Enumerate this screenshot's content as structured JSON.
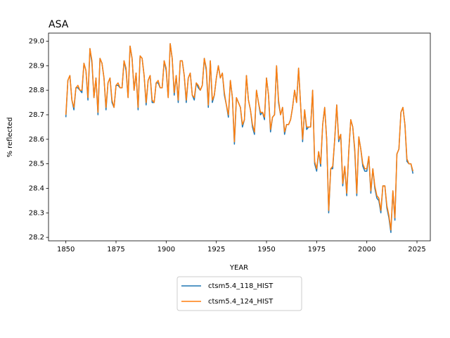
{
  "chart_data": {
    "type": "line",
    "title": "ASA",
    "y_label": "% reflected",
    "x_label": "YEAR",
    "x": [
      1850,
      1851,
      1852,
      1853,
      1854,
      1855,
      1856,
      1857,
      1858,
      1859,
      1860,
      1861,
      1862,
      1863,
      1864,
      1865,
      1866,
      1867,
      1868,
      1869,
      1870,
      1871,
      1872,
      1873,
      1874,
      1875,
      1876,
      1877,
      1878,
      1879,
      1880,
      1881,
      1882,
      1883,
      1884,
      1885,
      1886,
      1887,
      1888,
      1889,
      1890,
      1891,
      1892,
      1893,
      1894,
      1895,
      1896,
      1897,
      1898,
      1899,
      1900,
      1901,
      1902,
      1903,
      1904,
      1905,
      1906,
      1907,
      1908,
      1909,
      1910,
      1911,
      1912,
      1913,
      1914,
      1915,
      1916,
      1917,
      1918,
      1919,
      1920,
      1921,
      1922,
      1923,
      1924,
      1925,
      1926,
      1927,
      1928,
      1929,
      1930,
      1931,
      1932,
      1933,
      1934,
      1935,
      1936,
      1937,
      1938,
      1939,
      1940,
      1941,
      1942,
      1943,
      1944,
      1945,
      1946,
      1947,
      1948,
      1949,
      1950,
      1951,
      1952,
      1953,
      1954,
      1955,
      1956,
      1957,
      1958,
      1959,
      1960,
      1961,
      1962,
      1963,
      1964,
      1965,
      1966,
      1967,
      1968,
      1969,
      1970,
      1971,
      1972,
      1973,
      1974,
      1975,
      1976,
      1977,
      1978,
      1979,
      1980,
      1981,
      1982,
      1983,
      1984,
      1985,
      1986,
      1987,
      1988,
      1989,
      1990,
      1991,
      1992,
      1993,
      1994,
      1995,
      1996,
      1997,
      1998,
      1999,
      2000,
      2001,
      2002,
      2003,
      2004,
      2005,
      2006,
      2007,
      2008,
      2009,
      2010,
      2011,
      2012,
      2013,
      2014,
      2015,
      2016,
      2017,
      2018,
      2019,
      2020,
      2021,
      2022,
      2023
    ],
    "series": [
      {
        "name": "ctsm5.4_118_HIST",
        "color": "#1f77b4",
        "values": [
          28.69,
          28.84,
          28.86,
          28.76,
          28.72,
          28.81,
          28.81,
          28.8,
          28.79,
          28.91,
          28.88,
          28.76,
          28.97,
          28.91,
          28.77,
          28.85,
          28.7,
          28.93,
          28.91,
          28.85,
          28.72,
          28.83,
          28.85,
          28.75,
          28.73,
          28.82,
          28.82,
          28.81,
          28.81,
          28.92,
          28.88,
          28.77,
          28.98,
          28.93,
          28.8,
          28.87,
          28.72,
          28.94,
          28.93,
          28.86,
          28.74,
          28.84,
          28.86,
          28.75,
          28.75,
          28.83,
          28.83,
          28.81,
          28.81,
          28.92,
          28.88,
          28.77,
          28.99,
          28.93,
          28.78,
          28.86,
          28.75,
          28.92,
          28.92,
          28.86,
          28.75,
          28.85,
          28.87,
          28.78,
          28.76,
          28.83,
          28.81,
          28.8,
          28.82,
          28.93,
          28.88,
          28.73,
          28.92,
          28.75,
          28.78,
          28.85,
          28.9,
          28.85,
          28.87,
          28.78,
          28.74,
          28.69,
          28.84,
          28.77,
          28.58,
          28.77,
          28.75,
          28.73,
          28.65,
          28.68,
          28.86,
          28.76,
          28.72,
          28.65,
          28.62,
          28.8,
          28.75,
          28.7,
          28.71,
          28.68,
          28.85,
          28.78,
          28.63,
          28.69,
          28.7,
          28.9,
          28.75,
          28.7,
          28.73,
          28.62,
          28.66,
          28.66,
          28.68,
          28.73,
          28.8,
          28.75,
          28.89,
          28.74,
          28.59,
          28.72,
          28.64,
          28.65,
          28.65,
          28.8,
          28.5,
          28.47,
          28.55,
          28.49,
          28.66,
          28.73,
          28.6,
          28.3,
          28.48,
          28.48,
          28.6,
          28.74,
          28.59,
          28.62,
          28.41,
          28.49,
          28.37,
          28.55,
          28.68,
          28.65,
          28.55,
          28.37,
          28.61,
          28.56,
          28.49,
          28.47,
          28.47,
          28.53,
          28.38,
          28.48,
          28.4,
          28.36,
          28.35,
          28.3,
          28.41,
          28.41,
          28.32,
          28.28,
          28.22,
          28.39,
          28.27,
          28.54,
          28.56,
          28.71,
          28.73,
          28.66,
          28.51,
          28.5,
          28.5,
          28.46
        ]
      },
      {
        "name": "ctsm5.4_124_HIST",
        "color": "#ff7f0e",
        "values": [
          28.7,
          28.84,
          28.86,
          28.76,
          28.73,
          28.81,
          28.82,
          28.8,
          28.8,
          28.91,
          28.88,
          28.77,
          28.97,
          28.92,
          28.77,
          28.85,
          28.71,
          28.93,
          28.91,
          28.85,
          28.73,
          28.83,
          28.85,
          28.76,
          28.73,
          28.82,
          28.83,
          28.81,
          28.81,
          28.92,
          28.89,
          28.77,
          28.98,
          28.93,
          28.8,
          28.87,
          28.73,
          28.94,
          28.93,
          28.86,
          28.75,
          28.84,
          28.86,
          28.76,
          28.75,
          28.83,
          28.84,
          28.81,
          28.81,
          28.92,
          28.89,
          28.77,
          28.99,
          28.93,
          28.79,
          28.86,
          28.76,
          28.92,
          28.92,
          28.86,
          28.76,
          28.85,
          28.87,
          28.78,
          28.77,
          28.83,
          28.82,
          28.8,
          28.82,
          28.93,
          28.89,
          28.74,
          28.92,
          28.76,
          28.78,
          28.85,
          28.9,
          28.85,
          28.87,
          28.79,
          28.74,
          28.7,
          28.84,
          28.77,
          28.59,
          28.77,
          28.75,
          28.73,
          28.66,
          28.68,
          28.86,
          28.76,
          28.72,
          28.66,
          28.63,
          28.8,
          28.75,
          28.71,
          28.71,
          28.69,
          28.85,
          28.78,
          28.64,
          28.69,
          28.7,
          28.9,
          28.76,
          28.7,
          28.73,
          28.63,
          28.66,
          28.66,
          28.68,
          28.73,
          28.8,
          28.75,
          28.89,
          28.74,
          28.6,
          28.72,
          28.65,
          28.65,
          28.65,
          28.8,
          28.51,
          28.48,
          28.55,
          28.5,
          28.66,
          28.73,
          28.6,
          28.31,
          28.48,
          28.49,
          28.6,
          28.74,
          28.6,
          28.62,
          28.42,
          28.49,
          28.38,
          28.55,
          28.68,
          28.65,
          28.56,
          28.38,
          28.61,
          28.56,
          28.5,
          28.48,
          28.48,
          28.53,
          28.39,
          28.48,
          28.41,
          28.37,
          28.36,
          28.31,
          28.41,
          28.41,
          28.33,
          28.29,
          28.23,
          28.39,
          28.28,
          28.54,
          28.56,
          28.71,
          28.73,
          28.66,
          28.52,
          28.5,
          28.5,
          28.47
        ]
      }
    ],
    "xlim": [
      1841.35,
      2031.65
    ],
    "xticks": [
      1850,
      1875,
      1900,
      1925,
      1950,
      1975,
      2000,
      2025
    ],
    "ylim": [
      28.186,
      29.033
    ],
    "yticks": [
      28.2,
      28.3,
      28.4,
      28.5,
      28.6,
      28.7,
      28.8,
      28.9,
      {
        "value": 29,
        "label": "29.0"
      }
    ],
    "legend": "below"
  }
}
